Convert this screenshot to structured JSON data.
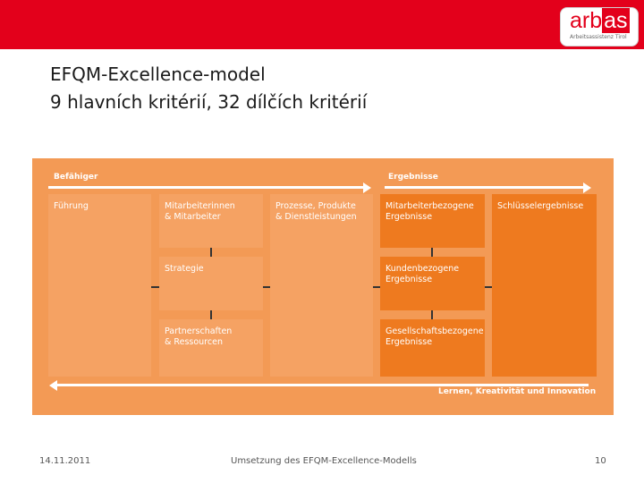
{
  "logo": {
    "word_main": "arb",
    "word_accent": "as",
    "subtitle": "Arbeitsassistenz Tirol"
  },
  "title": {
    "line1": "EFQM-Excellence-model",
    "line2": "9 hlavních kritérií, 32 dílčích kritérií"
  },
  "diagram": {
    "enablers_label": "Befähiger",
    "results_label": "Ergebnisse",
    "learning_label": "Lernen, Kreativität und Innovation",
    "boxes": {
      "leadership": "Führung",
      "people": "Mitarbeiterinnen\n& Mitarbeiter",
      "strategy": "Strategie",
      "partnerships": "Partnerschaften\n& Ressourcen",
      "processes": "Prozesse, Produkte\n& Dienstleistungen",
      "people_results": "Mitarbeiterbezogene\nErgebnisse",
      "customer_results": "Kundenbezogene\nErgebnisse",
      "society_results": "Gesellschaftsbezogene\nErgebnisse",
      "key_results": "Schlüsselergebnisse"
    },
    "colors": {
      "frame": "#f39a55",
      "light_box": "#f5a263",
      "dark_box": "#ee7a1f",
      "header_bar": "#e3001b"
    }
  },
  "footer": {
    "date": "14.11.2011",
    "caption": "Umsetzung des EFQM-Excellence-Modells",
    "page": "10"
  }
}
